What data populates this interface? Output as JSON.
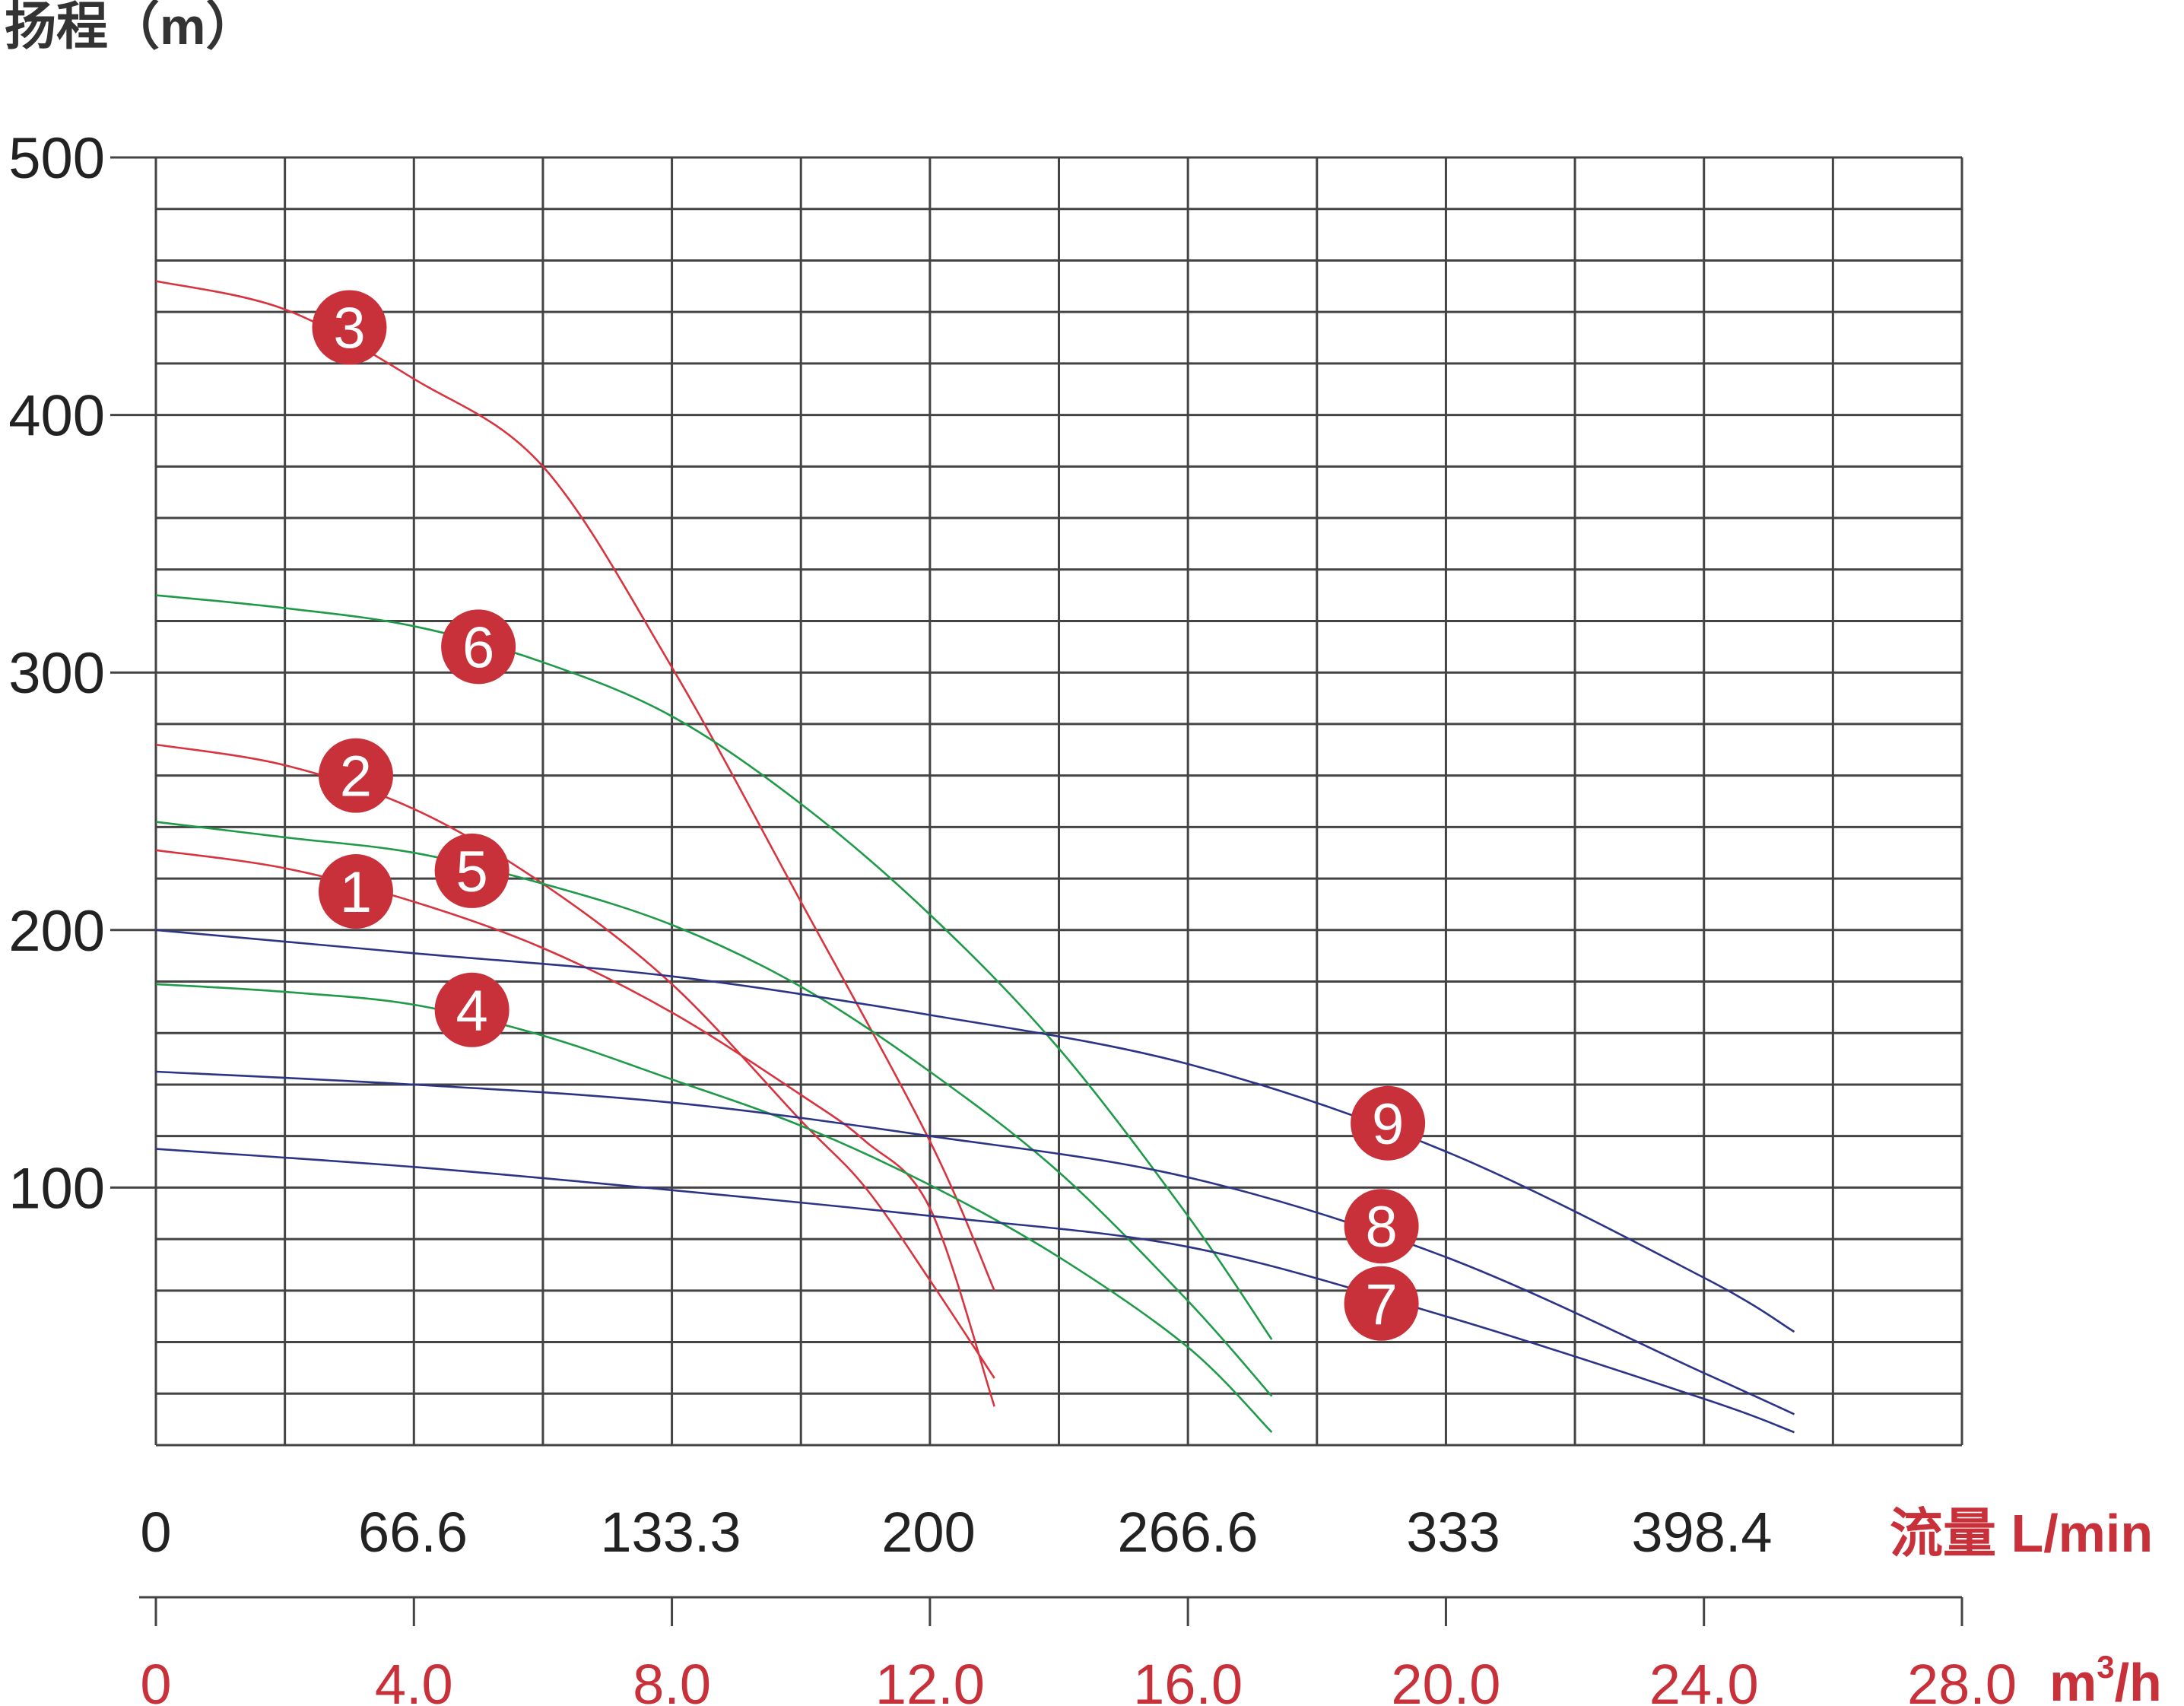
{
  "chart_data": {
    "type": "line",
    "ylabel": "扬程（m）",
    "y_ticks": [
      "500",
      "400",
      "300",
      "200",
      "100"
    ],
    "ylim": [
      0,
      500
    ],
    "grid": true,
    "x_axis_top": {
      "label": "流量 L/min",
      "ticks": [
        "0",
        "66.6",
        "133.3",
        "200",
        "266.6",
        "333",
        "398.4"
      ]
    },
    "x_axis_bottom": {
      "label": "m",
      "label_superscript": "3",
      "label_suffix": "/h",
      "ticks": [
        "0",
        "4.0",
        "8.0",
        "12.0",
        "16.0",
        "20.0",
        "24.0",
        "28.0"
      ]
    },
    "xlim": [
      0,
      28
    ],
    "colors": {
      "red": "#d8343f",
      "green": "#1e9a48",
      "blue": "#2c3487",
      "badge": "#c8303a"
    },
    "series": [
      {
        "name": "1",
        "color": "red",
        "label_at": [
          3.1,
          215
        ],
        "points": [
          [
            0,
            231
          ],
          [
            2,
            224
          ],
          [
            4,
            211
          ],
          [
            6,
            193
          ],
          [
            8,
            168
          ],
          [
            10,
            136
          ],
          [
            11,
            118
          ],
          [
            12,
            92
          ],
          [
            13,
            15
          ]
        ]
      },
      {
        "name": "2",
        "color": "red",
        "label_at": [
          3.1,
          260
        ],
        "points": [
          [
            0,
            272
          ],
          [
            2,
            264
          ],
          [
            4,
            247
          ],
          [
            6,
            218
          ],
          [
            8,
            179
          ],
          [
            10,
            126
          ],
          [
            11,
            100
          ],
          [
            12,
            64
          ],
          [
            13,
            26
          ]
        ]
      },
      {
        "name": "3",
        "color": "red",
        "label_at": [
          3.0,
          434
        ],
        "points": [
          [
            0,
            452
          ],
          [
            2,
            441
          ],
          [
            4,
            414
          ],
          [
            6,
            380
          ],
          [
            8,
            302
          ],
          [
            10,
            211
          ],
          [
            12,
            118
          ],
          [
            13,
            60
          ]
        ]
      },
      {
        "name": "4",
        "color": "green",
        "label_at": [
          4.9,
          169
        ],
        "points": [
          [
            0,
            179
          ],
          [
            2,
            176
          ],
          [
            4,
            171
          ],
          [
            6,
            159
          ],
          [
            8,
            142
          ],
          [
            10,
            124
          ],
          [
            12,
            101
          ],
          [
            14,
            73
          ],
          [
            16,
            38
          ],
          [
            17.3,
            5
          ]
        ]
      },
      {
        "name": "5",
        "color": "green",
        "label_at": [
          4.9,
          223
        ],
        "points": [
          [
            0,
            242
          ],
          [
            2,
            236
          ],
          [
            4,
            230
          ],
          [
            6,
            218
          ],
          [
            8,
            202
          ],
          [
            10,
            178
          ],
          [
            12,
            145
          ],
          [
            14,
            106
          ],
          [
            16,
            56
          ],
          [
            17.3,
            19
          ]
        ]
      },
      {
        "name": "6",
        "color": "green",
        "label_at": [
          5.0,
          310
        ],
        "points": [
          [
            0,
            330
          ],
          [
            2,
            325
          ],
          [
            4,
            318
          ],
          [
            6,
            304
          ],
          [
            8,
            283
          ],
          [
            10,
            249
          ],
          [
            12,
            206
          ],
          [
            14,
            154
          ],
          [
            16,
            89
          ],
          [
            17.3,
            41
          ]
        ]
      },
      {
        "name": "7",
        "color": "blue",
        "label_at": [
          19.0,
          55
        ],
        "points": [
          [
            0,
            115
          ],
          [
            4,
            108
          ],
          [
            8,
            99
          ],
          [
            12,
            89
          ],
          [
            16,
            77
          ],
          [
            20,
            50
          ],
          [
            24,
            18
          ],
          [
            25.4,
            5
          ]
        ]
      },
      {
        "name": "8",
        "color": "blue",
        "label_at": [
          19.0,
          85
        ],
        "points": [
          [
            0,
            145
          ],
          [
            4,
            140
          ],
          [
            8,
            133
          ],
          [
            12,
            120
          ],
          [
            16,
            104
          ],
          [
            20,
            73
          ],
          [
            24,
            28
          ],
          [
            25.4,
            12
          ]
        ]
      },
      {
        "name": "9",
        "color": "blue",
        "label_at": [
          19.1,
          125
        ],
        "points": [
          [
            0,
            200
          ],
          [
            4,
            191
          ],
          [
            8,
            182
          ],
          [
            12,
            167
          ],
          [
            16,
            148
          ],
          [
            20,
            114
          ],
          [
            24,
            65
          ],
          [
            25.4,
            44
          ]
        ]
      }
    ]
  }
}
